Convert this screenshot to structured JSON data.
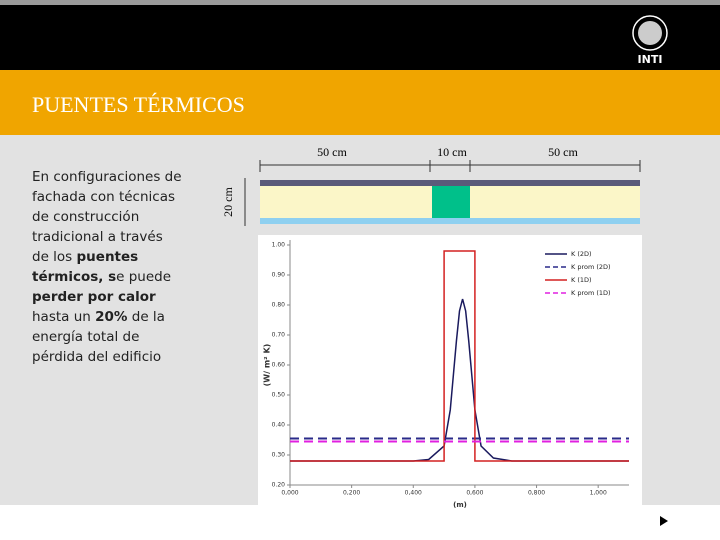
{
  "header": {
    "title": "PUENTES TÉRMICOS",
    "logo_text": "INTI"
  },
  "body": {
    "runs": [
      {
        "text": "En configuraciones de fachada con técnicas de construcción tradicional a través de los ",
        "bold": false
      },
      {
        "text": "puentes térmicos, s",
        "bold": true
      },
      {
        "text": "e puede ",
        "bold": false
      },
      {
        "text": "perder por calor",
        "bold": true
      },
      {
        "text": " hasta un ",
        "bold": false
      },
      {
        "text": "20%",
        "bold": true
      },
      {
        "text": " de la energía total de pérdida del edificio",
        "bold": false
      }
    ]
  },
  "diagram": {
    "widths": [
      "50 cm",
      "10 cm",
      "50 cm"
    ],
    "height": "20 cm"
  },
  "chart_data": {
    "type": "line",
    "ylabel": "(W/ m² K)",
    "xlabel": "(m)",
    "xlim": [
      0,
      1.1
    ],
    "ylim": [
      0.2,
      1.0
    ],
    "xticks": [
      {
        "value": 0,
        "label": "0,000"
      },
      {
        "value": 0.2,
        "label": "0,200"
      },
      {
        "value": 0.4,
        "label": "0,400"
      },
      {
        "value": 0.6,
        "label": "0,600"
      },
      {
        "value": 0.8,
        "label": "0,800"
      },
      {
        "value": 1.0,
        "label": "1,000"
      }
    ],
    "yticks": [
      {
        "value": 0.2,
        "label": "0.20"
      },
      {
        "value": 0.3,
        "label": "0.30"
      },
      {
        "value": 0.4,
        "label": "0.40"
      },
      {
        "value": 0.5,
        "label": "0.50"
      },
      {
        "value": 0.6,
        "label": "0.60"
      },
      {
        "value": 0.7,
        "label": "0.70"
      },
      {
        "value": 0.8,
        "label": "0.80"
      },
      {
        "value": 0.9,
        "label": "0.90"
      },
      {
        "value": 1.0,
        "label": "1.00"
      }
    ],
    "legend": "top-right",
    "series": [
      {
        "name": "K (2D)",
        "color": "#1a1a5e",
        "dash": false,
        "x": [
          0,
          0.4,
          0.45,
          0.5,
          0.52,
          0.54,
          0.55,
          0.56,
          0.57,
          0.58,
          0.6,
          0.62,
          0.66,
          0.72,
          1.1
        ],
        "values": [
          0.28,
          0.28,
          0.285,
          0.33,
          0.45,
          0.68,
          0.78,
          0.82,
          0.78,
          0.68,
          0.45,
          0.33,
          0.29,
          0.28,
          0.28
        ]
      },
      {
        "name": "K prom (2D)",
        "color": "#2a2a8a",
        "dash": true,
        "x": [
          0,
          1.1
        ],
        "values": [
          0.355,
          0.355
        ]
      },
      {
        "name": "K (1D)",
        "color": "#d42020",
        "dash": false,
        "x": [
          0,
          0.5,
          0.5,
          0.6,
          0.6,
          1.1
        ],
        "values": [
          0.28,
          0.28,
          0.98,
          0.98,
          0.28,
          0.28
        ]
      },
      {
        "name": "K prom (1D)",
        "color": "#e020e0",
        "dash": true,
        "x": [
          0,
          1.1
        ],
        "values": [
          0.345,
          0.345
        ]
      }
    ]
  }
}
